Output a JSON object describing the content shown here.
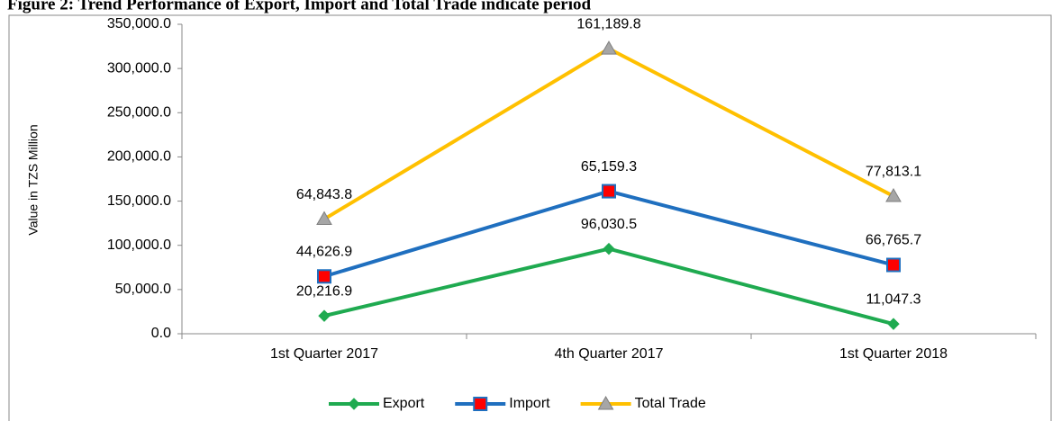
{
  "chart_data": {
    "type": "line",
    "stacked": true,
    "title": "Figure 2: Trend Performance of Export, Import and Total Trade indicate period",
    "y_label": "Value in TZS Million",
    "categories": [
      "1st Quarter 2017",
      "4th Quarter 2017",
      "1st Quarter 2018"
    ],
    "series": [
      {
        "name": "Export",
        "color": "#1faa50",
        "marker": "diamond",
        "marker_color": "#1faa50",
        "values": [
          20216.9,
          96030.5,
          11047.3
        ],
        "value_labels": [
          "20,216.9",
          "96,030.5",
          "11,047.3"
        ]
      },
      {
        "name": "Import",
        "color": "#1f6fbf",
        "marker": "square",
        "marker_color": "#ff0000",
        "values": [
          44626.9,
          65159.3,
          66765.7
        ],
        "value_labels": [
          "44,626.9",
          "65,159.3",
          "66,765.7"
        ]
      },
      {
        "name": "Total Trade",
        "color": "#ffc000",
        "marker": "triangle",
        "marker_color": "#a6a6a6",
        "values": [
          64843.8,
          161189.8,
          77813.1
        ],
        "value_labels": [
          "64,843.8",
          "161,189.8",
          "77,813.1"
        ]
      }
    ],
    "ylim": [
      0,
      350000
    ],
    "yticks": [
      {
        "value": 0,
        "label": "0.0"
      },
      {
        "value": 50000,
        "label": "50,000.0"
      },
      {
        "value": 100000,
        "label": "100,000.0"
      },
      {
        "value": 150000,
        "label": "150,000.0"
      },
      {
        "value": 200000,
        "label": "200,000.0"
      },
      {
        "value": 250000,
        "label": "250,000.0"
      },
      {
        "value": 300000,
        "label": "300,000.0"
      },
      {
        "value": 350000,
        "label": "350,000.0"
      }
    ],
    "grid": false,
    "legend": "bottom"
  }
}
